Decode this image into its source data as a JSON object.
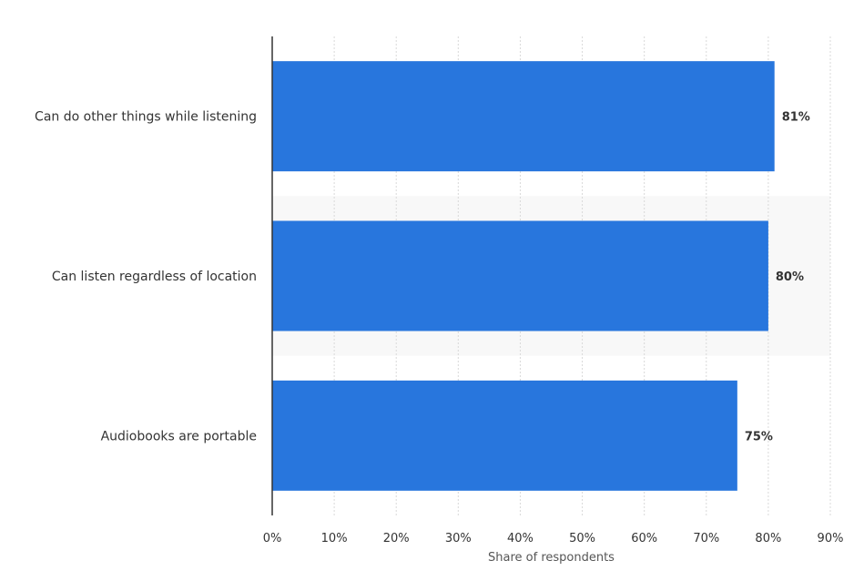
{
  "chart_data": {
    "type": "bar",
    "orientation": "horizontal",
    "categories": [
      "Can do other things while listening",
      "Can listen regardless of location",
      "Audiobooks are portable"
    ],
    "values": [
      81,
      80,
      75
    ],
    "data_labels": [
      "81%",
      "80%",
      "75%"
    ],
    "xlabel": "Share of respondents",
    "ylabel": "",
    "title": "",
    "xlim": [
      0,
      90
    ],
    "x_ticks": [
      0,
      10,
      20,
      30,
      40,
      50,
      60,
      70,
      80,
      90
    ],
    "x_tick_labels": [
      "0%",
      "10%",
      "20%",
      "30%",
      "40%",
      "50%",
      "60%",
      "70%",
      "80%",
      "90%"
    ],
    "grid": true,
    "legend": "none",
    "colors": {
      "bar": "#2876dd",
      "grid": "#d9d9d9",
      "axis": "#333333",
      "band": "#f8f8f8"
    }
  }
}
